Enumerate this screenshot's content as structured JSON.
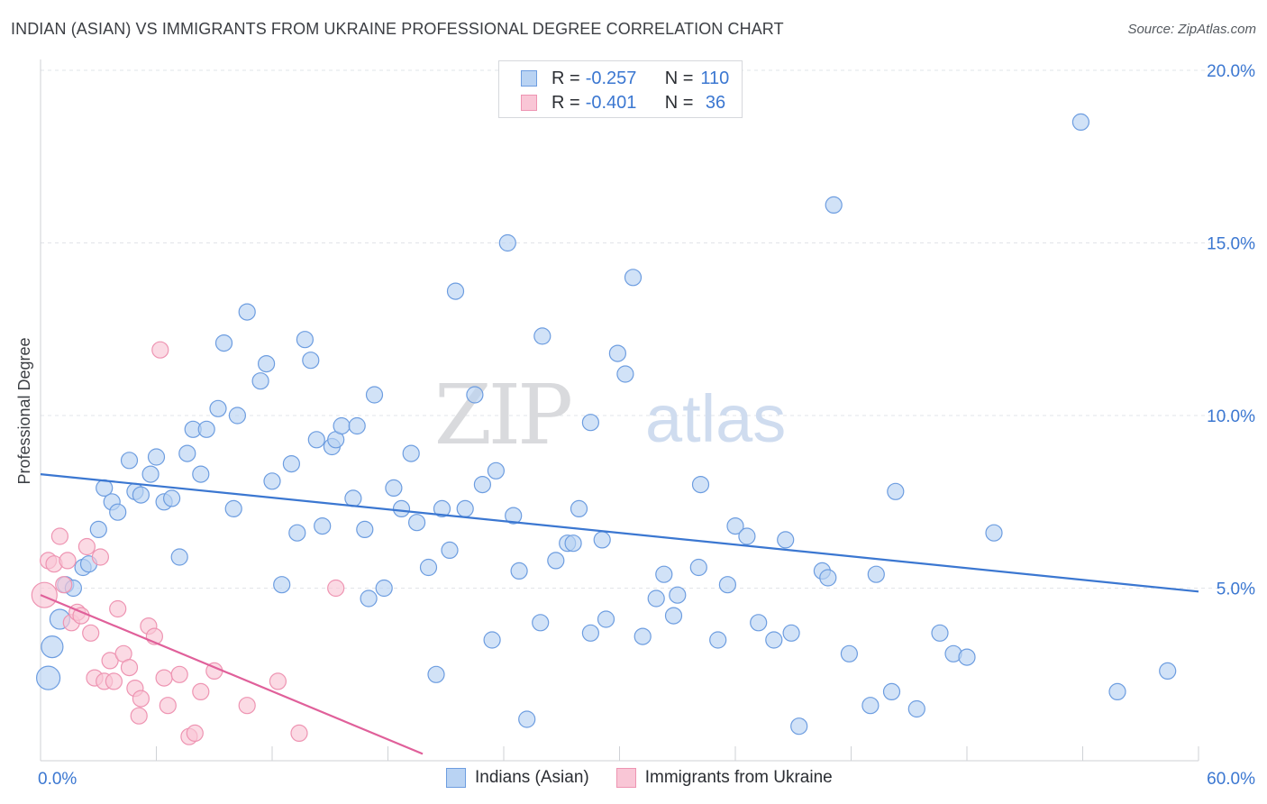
{
  "title": "INDIAN (ASIAN) VS IMMIGRANTS FROM UKRAINE PROFESSIONAL DEGREE CORRELATION CHART",
  "source": "Source: ZipAtlas.com",
  "watermark": {
    "zip": "ZIP",
    "atlas": "atlas"
  },
  "legend": {
    "rows": [
      {
        "r_label": "R =",
        "r_value": "-0.257",
        "n_label": "N =",
        "n_value": "110",
        "fill": "#b9d3f3",
        "stroke": "#6d9de0"
      },
      {
        "r_label": "R =",
        "r_value": "-0.401",
        "n_label": "N =",
        "n_value": " 36",
        "fill": "#f9c6d6",
        "stroke": "#ee94b2"
      }
    ]
  },
  "bottom_legend": [
    {
      "label": "Indians (Asian)",
      "fill": "#b9d3f3",
      "stroke": "#6d9de0"
    },
    {
      "label": "Immigrants from Ukraine",
      "fill": "#f9c6d6",
      "stroke": "#ee94b2"
    }
  ],
  "chart_data": {
    "type": "scatter",
    "title": "INDIAN (ASIAN) VS IMMIGRANTS FROM UKRAINE PROFESSIONAL DEGREE CORRELATION CHART",
    "xlabel": "",
    "ylabel": "Professional Degree",
    "xlim": [
      0,
      60
    ],
    "ylim": [
      0,
      20
    ],
    "x_tick_labels": [
      "0.0%",
      "60.0%"
    ],
    "y_tick_labels": [
      "5.0%",
      "10.0%",
      "15.0%",
      "20.0%"
    ],
    "y_tick_values": [
      5,
      10,
      15,
      20
    ],
    "grid": true,
    "series": [
      {
        "name": "Indians (Asian)",
        "color": "#3b77d1",
        "fill": "#b9d3f3",
        "stroke": "#6d9de0",
        "r": -0.257,
        "n": 110,
        "trend": {
          "x": [
            0,
            60
          ],
          "y": [
            8.3,
            4.9
          ]
        },
        "points": [
          [
            0.4,
            2.4
          ],
          [
            0.6,
            3.3
          ],
          [
            1.0,
            4.1
          ],
          [
            1.3,
            5.1
          ],
          [
            1.7,
            5.0
          ],
          [
            2.2,
            5.6
          ],
          [
            2.5,
            5.7
          ],
          [
            3.0,
            6.7
          ],
          [
            3.3,
            7.9
          ],
          [
            3.7,
            7.5
          ],
          [
            4.0,
            7.2
          ],
          [
            4.6,
            8.7
          ],
          [
            4.9,
            7.8
          ],
          [
            5.2,
            7.7
          ],
          [
            5.7,
            8.3
          ],
          [
            6.0,
            8.8
          ],
          [
            6.4,
            7.5
          ],
          [
            6.8,
            7.6
          ],
          [
            7.2,
            5.9
          ],
          [
            7.6,
            8.9
          ],
          [
            7.9,
            9.6
          ],
          [
            8.3,
            8.3
          ],
          [
            8.6,
            9.6
          ],
          [
            9.2,
            10.2
          ],
          [
            9.5,
            12.1
          ],
          [
            10.0,
            7.3
          ],
          [
            10.2,
            10.0
          ],
          [
            10.7,
            13.0
          ],
          [
            11.4,
            11.0
          ],
          [
            11.7,
            11.5
          ],
          [
            12.0,
            8.1
          ],
          [
            12.5,
            5.1
          ],
          [
            13.0,
            8.6
          ],
          [
            13.3,
            6.6
          ],
          [
            13.7,
            12.2
          ],
          [
            14.0,
            11.6
          ],
          [
            14.3,
            9.3
          ],
          [
            14.6,
            6.8
          ],
          [
            15.1,
            9.1
          ],
          [
            15.3,
            9.3
          ],
          [
            15.6,
            9.7
          ],
          [
            16.2,
            7.6
          ],
          [
            16.4,
            9.7
          ],
          [
            16.8,
            6.7
          ],
          [
            17.0,
            4.7
          ],
          [
            17.3,
            10.6
          ],
          [
            17.8,
            5.0
          ],
          [
            18.3,
            7.9
          ],
          [
            18.7,
            7.3
          ],
          [
            19.2,
            8.9
          ],
          [
            19.5,
            6.9
          ],
          [
            20.1,
            5.6
          ],
          [
            20.5,
            2.5
          ],
          [
            20.8,
            7.3
          ],
          [
            21.2,
            6.1
          ],
          [
            21.5,
            13.6
          ],
          [
            22.0,
            7.3
          ],
          [
            22.5,
            10.6
          ],
          [
            22.9,
            8.0
          ],
          [
            23.4,
            3.5
          ],
          [
            23.6,
            8.4
          ],
          [
            24.2,
            15.0
          ],
          [
            24.5,
            7.1
          ],
          [
            24.8,
            5.5
          ],
          [
            25.2,
            1.2
          ],
          [
            25.9,
            4.0
          ],
          [
            26.0,
            12.3
          ],
          [
            26.7,
            5.8
          ],
          [
            27.3,
            6.3
          ],
          [
            27.6,
            6.3
          ],
          [
            27.9,
            7.3
          ],
          [
            28.5,
            9.8
          ],
          [
            28.5,
            3.7
          ],
          [
            29.1,
            6.4
          ],
          [
            29.3,
            4.1
          ],
          [
            29.9,
            11.8
          ],
          [
            30.3,
            11.2
          ],
          [
            30.7,
            14.0
          ],
          [
            31.2,
            3.6
          ],
          [
            31.9,
            4.7
          ],
          [
            32.3,
            5.4
          ],
          [
            32.8,
            4.2
          ],
          [
            33.0,
            4.8
          ],
          [
            34.1,
            5.6
          ],
          [
            34.2,
            8.0
          ],
          [
            35.1,
            3.5
          ],
          [
            35.6,
            5.1
          ],
          [
            36.0,
            6.8
          ],
          [
            36.6,
            6.5
          ],
          [
            37.2,
            4.0
          ],
          [
            38.0,
            3.5
          ],
          [
            38.6,
            6.4
          ],
          [
            38.9,
            3.7
          ],
          [
            39.3,
            1.0
          ],
          [
            40.5,
            5.5
          ],
          [
            40.8,
            5.3
          ],
          [
            41.1,
            16.1
          ],
          [
            41.9,
            3.1
          ],
          [
            43.0,
            1.6
          ],
          [
            43.3,
            5.4
          ],
          [
            44.1,
            2.0
          ],
          [
            44.3,
            7.8
          ],
          [
            45.4,
            1.5
          ],
          [
            46.6,
            3.7
          ],
          [
            47.3,
            3.1
          ],
          [
            48.0,
            3.0
          ],
          [
            49.4,
            6.6
          ],
          [
            53.9,
            18.5
          ],
          [
            55.8,
            2.0
          ],
          [
            58.4,
            2.6
          ]
        ]
      },
      {
        "name": "Immigrants from Ukraine",
        "color": "#e0609a",
        "fill": "#f9c6d6",
        "stroke": "#ee94b2",
        "r": -0.401,
        "n": 36,
        "trend": {
          "x": [
            0,
            19.8
          ],
          "y": [
            4.8,
            0.2
          ]
        },
        "points": [
          [
            0.2,
            4.8
          ],
          [
            0.4,
            5.8
          ],
          [
            0.7,
            5.7
          ],
          [
            1.0,
            6.5
          ],
          [
            1.2,
            5.1
          ],
          [
            1.4,
            5.8
          ],
          [
            1.6,
            4.0
          ],
          [
            1.9,
            4.3
          ],
          [
            2.1,
            4.2
          ],
          [
            2.4,
            6.2
          ],
          [
            2.6,
            3.7
          ],
          [
            2.8,
            2.4
          ],
          [
            3.1,
            5.9
          ],
          [
            3.3,
            2.3
          ],
          [
            3.6,
            2.9
          ],
          [
            3.8,
            2.3
          ],
          [
            4.0,
            4.4
          ],
          [
            4.3,
            3.1
          ],
          [
            4.6,
            2.7
          ],
          [
            4.9,
            2.1
          ],
          [
            5.1,
            1.3
          ],
          [
            5.2,
            1.8
          ],
          [
            5.6,
            3.9
          ],
          [
            5.9,
            3.6
          ],
          [
            6.2,
            11.9
          ],
          [
            6.4,
            2.4
          ],
          [
            6.6,
            1.6
          ],
          [
            7.2,
            2.5
          ],
          [
            7.7,
            0.7
          ],
          [
            8.0,
            0.8
          ],
          [
            8.3,
            2.0
          ],
          [
            9.0,
            2.6
          ],
          [
            10.7,
            1.6
          ],
          [
            12.3,
            2.3
          ],
          [
            13.4,
            0.8
          ],
          [
            15.3,
            5.0
          ]
        ]
      }
    ]
  }
}
